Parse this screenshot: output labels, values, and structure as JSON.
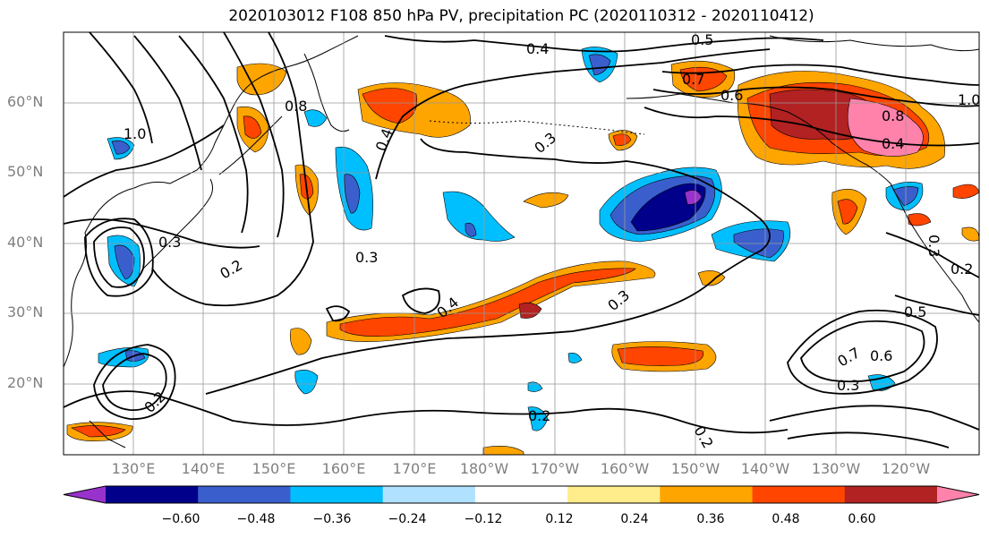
{
  "title": "2020103012 F108 850 hPa PV, precipitation PC (2020110312 - 2020110412)",
  "lat_labels": [
    "60°N",
    "50°N",
    "40°N",
    "30°N",
    "20°N"
  ],
  "lon_labels": [
    "130°E",
    "140°E",
    "150°E",
    "160°E",
    "170°E",
    "180°W",
    "170°W",
    "160°W",
    "150°W",
    "140°W",
    "130°W",
    "120°W"
  ],
  "contour_labels": [
    "0.5",
    "0.4",
    "0.3",
    "0.7",
    "0.6",
    "0.8",
    "1.0",
    "0.4",
    "0.3",
    "0.2",
    "0.4",
    "0.3",
    "0.3",
    "0.2",
    "0.2",
    "0.3",
    "0.5",
    "0.7",
    "0.3",
    "0.2",
    "0.4",
    "0.2",
    "1.0",
    "0.8",
    "0.6"
  ],
  "colorbar": {
    "ticks": [
      "−0.60",
      "−0.48",
      "−0.36",
      "−0.24",
      "−0.12",
      "0.12",
      "0.24",
      "0.36",
      "0.48",
      "0.60"
    ],
    "colors": [
      "#9932cc",
      "#00008b",
      "#3a5fcd",
      "#00bfff",
      "#b0e2ff",
      "#ffffff",
      "#ffec8b",
      "#ffa500",
      "#ff4500",
      "#b22222",
      "#ff82ab"
    ]
  }
}
